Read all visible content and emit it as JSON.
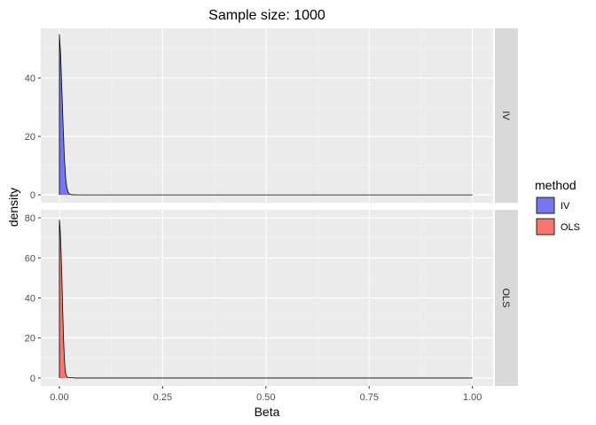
{
  "chart_data": {
    "type": "area",
    "title": "Sample size: 1000",
    "xlabel": "Beta",
    "ylabel": "density",
    "xlim": [
      -0.045,
      1.05
    ],
    "x_ticks": [
      0.0,
      0.25,
      0.5,
      0.75,
      1.0
    ],
    "x_tick_labels": [
      "0.00",
      "0.25",
      "0.50",
      "0.75",
      "1.00"
    ],
    "legend": {
      "title": "method",
      "position": "right",
      "entries": [
        {
          "label": "IV",
          "color": "#7575f5"
        },
        {
          "label": "OLS",
          "color": "#f8766d"
        }
      ]
    },
    "panels": [
      {
        "strip": "IV",
        "series": "IV",
        "color": "#7575f5",
        "ylim": [
          -2.7,
          57
        ],
        "y_ticks": [
          0,
          20,
          40
        ],
        "y_tick_labels": [
          "0",
          "20",
          "40"
        ],
        "x": [
          0.0,
          0.003,
          0.006,
          0.009,
          0.012,
          0.015,
          0.018,
          0.021,
          0.024,
          0.03,
          0.05,
          0.2,
          0.5,
          0.8,
          1.0
        ],
        "y": [
          55,
          48,
          36,
          24,
          13,
          6,
          2.5,
          1,
          0.3,
          0.05,
          0,
          0,
          0,
          0,
          0
        ]
      },
      {
        "strip": "OLS",
        "series": "OLS",
        "color": "#f8766d",
        "ylim": [
          -4,
          84
        ],
        "y_ticks": [
          0,
          20,
          40,
          60,
          80
        ],
        "y_tick_labels": [
          "0",
          "20",
          "40",
          "60",
          "80"
        ],
        "x": [
          0.0,
          0.002,
          0.004,
          0.006,
          0.008,
          0.01,
          0.012,
          0.014,
          0.016,
          0.02,
          0.04,
          0.2,
          0.5,
          0.8,
          1.0
        ],
        "y": [
          79,
          74,
          64,
          50,
          34,
          20,
          10,
          4,
          1.5,
          0.3,
          0,
          0,
          0,
          0,
          0
        ]
      }
    ],
    "grid": true,
    "background": "#ebebeb",
    "strip_background": "#d9d9d9"
  }
}
